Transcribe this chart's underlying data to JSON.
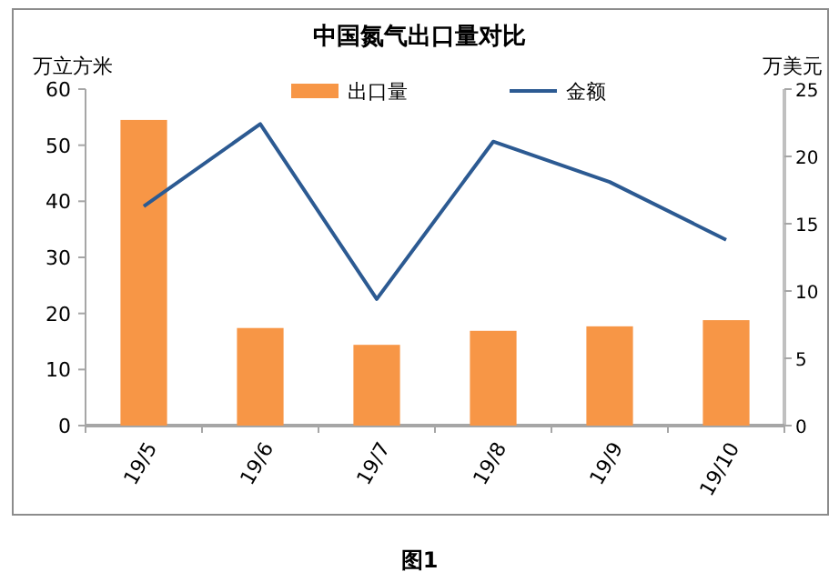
{
  "chart_data": {
    "type": "bar",
    "title": "中国氮气出口量对比",
    "ylabel": "万立方米",
    "y2label": "万美元",
    "annotations": [
      "图1"
    ],
    "categories": [
      "19/5",
      "19/6",
      "19/7",
      "19/8",
      "19/9",
      "19/10"
    ],
    "series": [
      {
        "name": "出口量",
        "color": "#f79646",
        "values": [
          54.5,
          17.4,
          14.4,
          16.9,
          17.7,
          18.8
        ]
      },
      {
        "name": "金额",
        "type": "line",
        "axis": "y2",
        "color": "#2c5a92",
        "values": [
          16.3,
          22.4,
          9.4,
          21.1,
          18.1,
          13.8
        ]
      }
    ],
    "ylim": [
      0,
      60
    ],
    "yticks": [
      0,
      10,
      20,
      30,
      40,
      50,
      60
    ],
    "y2lim": [
      0,
      25
    ],
    "y2ticks": [
      0,
      5,
      10,
      15,
      20,
      25
    ],
    "legend": "top",
    "grid": false,
    "marker": "none"
  }
}
